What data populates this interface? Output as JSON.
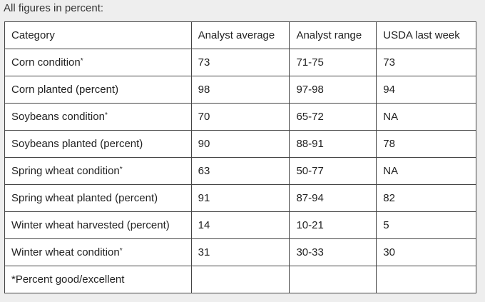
{
  "caption": "All figures in percent:",
  "table": {
    "headers": [
      "Category",
      "Analyst average",
      "Analyst range",
      "USDA last week"
    ],
    "rows": [
      {
        "category": "Corn condition",
        "marker": "*",
        "average": "73",
        "range": "71-75",
        "last_week": "73"
      },
      {
        "category": "Corn planted (percent)",
        "marker": "",
        "average": "98",
        "range": "97-98",
        "last_week": "94"
      },
      {
        "category": "Soybeans condition",
        "marker": "*",
        "average": "70",
        "range": "65-72",
        "last_week": "NA"
      },
      {
        "category": "Soybeans planted (percent)",
        "marker": "",
        "average": "90",
        "range": "88-91",
        "last_week": "78"
      },
      {
        "category": "Spring wheat condition",
        "marker": "*",
        "average": "63",
        "range": "50-77",
        "last_week": "NA"
      },
      {
        "category": "Spring wheat planted (percent)",
        "marker": "",
        "average": "91",
        "range": "87-94",
        "last_week": "82"
      },
      {
        "category": "Winter wheat harvested (percent)",
        "marker": "",
        "average": "14",
        "range": "10-21",
        "last_week": "5"
      },
      {
        "category": "Winter wheat condition",
        "marker": "*",
        "average": "31",
        "range": "30-33",
        "last_week": "30"
      }
    ],
    "footnote": "*Percent good/excellent"
  }
}
